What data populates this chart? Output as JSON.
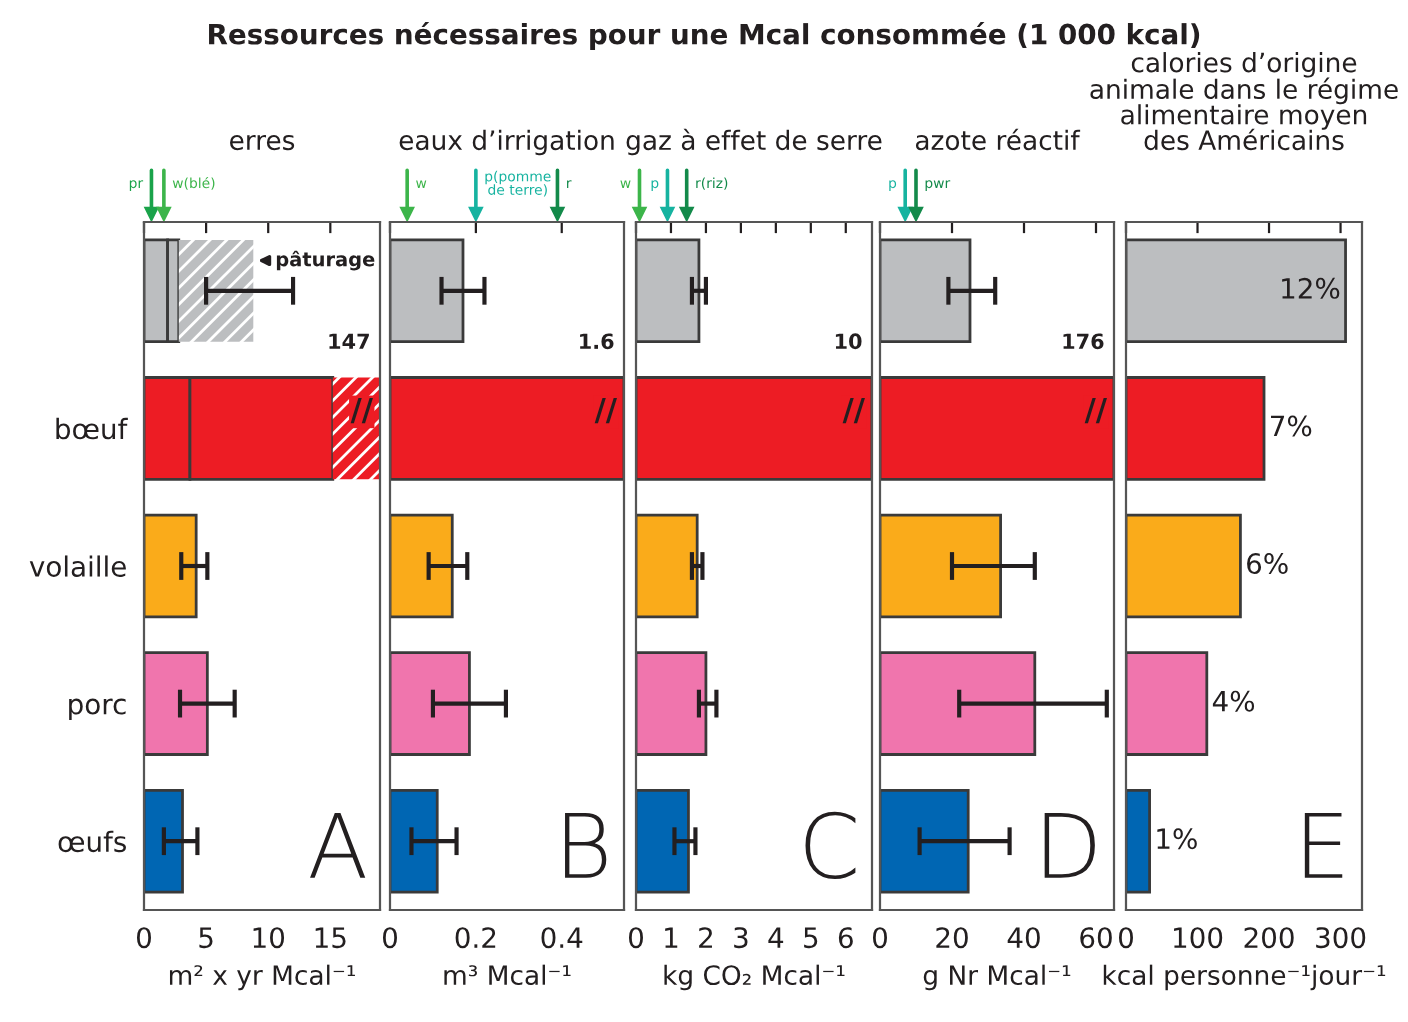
{
  "chart_data": [
    {
      "type": "bar",
      "orientation": "horizontal",
      "stacked": true,
      "title": "erres",
      "xlabel": "m² x yr Mcal⁻¹",
      "categories": [
        null,
        "bœuf",
        "volaille",
        "porc",
        "œufs"
      ],
      "series": [
        {
          "colors": [
            "#bcbec0",
            "#ed1c24",
            "#faab1a",
            "#f075ad",
            "#0066b3"
          ],
          "values": [
            1.9,
            3.7,
            4.2,
            5.1,
            3.1
          ],
          "errors": [
            null,
            null,
            [
              3,
              5.1
            ],
            [
              2.9,
              7.3
            ],
            [
              1.6,
              4.3
            ]
          ]
        },
        {
          "colors": [
            "#bcbec0",
            "#ed1c24",
            "#faab1a",
            "#f075ad",
            "#0066b3"
          ],
          "values": [
            0.9,
            11.5,
            null,
            null,
            null
          ]
        },
        {
          "colors": [
            "#bcbec0",
            "#ed1c24",
            "#faab1a",
            "#f075ad",
            "#0066b3"
          ],
          "values": [
            6.0,
            3.8,
            null,
            null,
            null
          ],
          "errors": [
            [
              5,
              12
            ],
            null,
            null,
            null,
            null
          ]
        }
      ],
      "xlim": [
        0,
        19
      ],
      "xticks": [
        0,
        5,
        10,
        15
      ],
      "ref_lines": [
        {
          "axis": "x",
          "value": 0.6,
          "label": "pr",
          "color": "#1aa34a"
        },
        {
          "axis": "x",
          "value": 1.6,
          "label": "w(blé)",
          "color": "#3cb54a"
        }
      ],
      "annotations": [
        "A",
        "Ressources nécessaires pour une Mcal consommée (1 000 kcal)",
        "pâturage",
        "147",
        "//"
      ]
    },
    {
      "type": "bar",
      "orientation": "horizontal",
      "title": "eaux d’irrigation",
      "xlabel": "m³ Mcal⁻¹",
      "categories": [
        null,
        null,
        null,
        null,
        null
      ],
      "series": [
        {
          "colors": [
            "#bcbec0",
            "#ed1c24",
            "#faab1a",
            "#f075ad",
            "#0066b3"
          ],
          "values": [
            0.17,
            0.545,
            0.145,
            0.185,
            0.11
          ],
          "errors": [
            [
              0.12,
              0.22
            ],
            null,
            [
              0.09,
              0.18
            ],
            [
              0.1,
              0.27
            ],
            [
              0.05,
              0.155
            ]
          ]
        }
      ],
      "xlim": [
        0,
        0.545
      ],
      "xticks": [
        0,
        0.2,
        0.4
      ],
      "ref_lines": [
        {
          "axis": "x",
          "value": 0.04,
          "label": "w",
          "color": "#3cb54a"
        },
        {
          "axis": "x",
          "value": 0.2,
          "label": "p(pomme\nde terre)",
          "color": "#16b3a0"
        },
        {
          "axis": "x",
          "value": 0.39,
          "label": "r",
          "color": "#138a4a"
        }
      ],
      "annotations": [
        "B",
        "1.6",
        "//"
      ]
    },
    {
      "type": "bar",
      "orientation": "horizontal",
      "title": "gaz à effet de serre",
      "xlabel": "kg CO₂ Mcal⁻¹",
      "categories": [
        null,
        null,
        null,
        null,
        null
      ],
      "series": [
        {
          "colors": [
            "#bcbec0",
            "#ed1c24",
            "#faab1a",
            "#f075ad",
            "#0066b3"
          ],
          "values": [
            1.8,
            6.75,
            1.75,
            2.0,
            1.5
          ],
          "errors": [
            [
              1.6,
              2.0
            ],
            null,
            [
              1.6,
              1.9
            ],
            [
              1.8,
              2.3
            ],
            [
              1.1,
              1.7
            ]
          ]
        }
      ],
      "xlim": [
        0,
        6.75
      ],
      "xticks": [
        0,
        1,
        2,
        3,
        4,
        5,
        6
      ],
      "ref_lines": [
        {
          "axis": "x",
          "value": 0.1,
          "label": "w",
          "color": "#3cb54a"
        },
        {
          "axis": "x",
          "value": 0.9,
          "label": "p",
          "color": "#16b3a0"
        },
        {
          "axis": "x",
          "value": 1.45,
          "label": "r(riz)",
          "color": "#138a4a"
        }
      ],
      "annotations": [
        "C",
        "10",
        "//"
      ]
    },
    {
      "type": "bar",
      "orientation": "horizontal",
      "title": "azote réactif",
      "xlabel": "g Nr Mcal⁻¹",
      "categories": [
        null,
        null,
        null,
        null,
        null
      ],
      "series": [
        {
          "colors": [
            "#bcbec0",
            "#ed1c24",
            "#faab1a",
            "#f075ad",
            "#0066b3"
          ],
          "values": [
            25,
            65,
            33.5,
            43,
            24.5
          ],
          "errors": [
            [
              19,
              32
            ],
            null,
            [
              20,
              43
            ],
            [
              22,
              63
            ],
            [
              11,
              36
            ]
          ]
        }
      ],
      "xlim": [
        0,
        65
      ],
      "xticks": [
        0,
        20,
        40,
        60
      ],
      "ref_lines": [
        {
          "axis": "x",
          "value": 7,
          "label": "p",
          "color": "#16b3a0"
        },
        {
          "axis": "x",
          "value": 10,
          "label": "pwr",
          "color": "#138a4a"
        }
      ],
      "annotations": [
        "D",
        "176",
        "//"
      ]
    },
    {
      "type": "bar",
      "orientation": "horizontal",
      "title": "calories d’origine\nanimale dans le régime\nalimentaire moyen\ndes Américains",
      "xlabel": "kcal personne⁻¹jour⁻¹",
      "categories": [
        null,
        null,
        null,
        null,
        null
      ],
      "series": [
        {
          "colors": [
            "#bcbec0",
            "#ed1c24",
            "#faab1a",
            "#f075ad",
            "#0066b3"
          ],
          "values": [
            307,
            193,
            160,
            113,
            33
          ]
        }
      ],
      "xlim": [
        0,
        330
      ],
      "xticks": [
        0,
        100,
        200,
        300
      ],
      "annotations": [
        "E",
        "12%",
        "7%",
        "6%",
        "4%",
        "1%"
      ]
    }
  ]
}
